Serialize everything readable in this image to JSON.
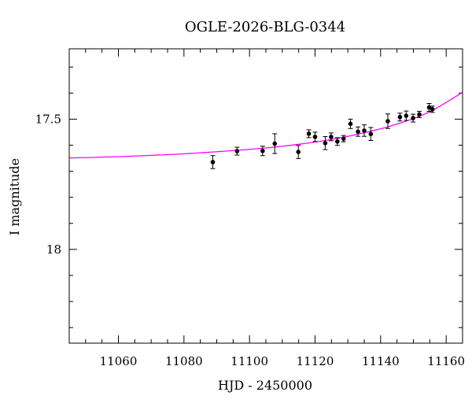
{
  "chart_data": {
    "type": "scatter",
    "title": "OGLE-2026-BLG-0344",
    "xlabel": "HJD - 2450000",
    "ylabel": "I magnitude",
    "xlim": [
      11045,
      11165
    ],
    "ylim": [
      18.36,
      17.23
    ],
    "y_inverted": true,
    "x_ticks": [
      11060,
      11080,
      11100,
      11120,
      11140,
      11160
    ],
    "x_minor_step": 5,
    "y_ticks": [
      17.5,
      18
    ],
    "y_minor_step": 0.1,
    "grid": false,
    "legend": "none",
    "colors": {
      "data_points": "#000000",
      "model_curve": "#ff00ff",
      "frame": "#000000"
    },
    "series": [
      {
        "kind": "points_with_errors",
        "points": [
          {
            "x": 11088.8,
            "y": 17.665,
            "err": 0.025
          },
          {
            "x": 11096.2,
            "y": 17.623,
            "err": 0.015
          },
          {
            "x": 11104.0,
            "y": 17.622,
            "err": 0.018
          },
          {
            "x": 11107.7,
            "y": 17.594,
            "err": 0.038
          },
          {
            "x": 11114.9,
            "y": 17.626,
            "err": 0.025
          },
          {
            "x": 11118.1,
            "y": 17.556,
            "err": 0.015
          },
          {
            "x": 11120.0,
            "y": 17.568,
            "err": 0.018
          },
          {
            "x": 11123.1,
            "y": 17.592,
            "err": 0.025
          },
          {
            "x": 11124.9,
            "y": 17.568,
            "err": 0.015
          },
          {
            "x": 11126.8,
            "y": 17.586,
            "err": 0.015
          },
          {
            "x": 11128.7,
            "y": 17.575,
            "err": 0.012
          },
          {
            "x": 11130.8,
            "y": 17.518,
            "err": 0.018
          },
          {
            "x": 11133.1,
            "y": 17.548,
            "err": 0.018
          },
          {
            "x": 11135.0,
            "y": 17.544,
            "err": 0.022
          },
          {
            "x": 11137.0,
            "y": 17.557,
            "err": 0.025
          },
          {
            "x": 11142.2,
            "y": 17.508,
            "err": 0.028
          },
          {
            "x": 11145.9,
            "y": 17.492,
            "err": 0.015
          },
          {
            "x": 11147.8,
            "y": 17.487,
            "err": 0.018
          },
          {
            "x": 11149.9,
            "y": 17.496,
            "err": 0.015
          },
          {
            "x": 11151.8,
            "y": 17.482,
            "err": 0.012
          },
          {
            "x": 11154.8,
            "y": 17.455,
            "err": 0.015
          },
          {
            "x": 11155.8,
            "y": 17.462,
            "err": 0.012
          }
        ]
      },
      {
        "kind": "model_curve",
        "points": [
          {
            "x": 11045,
            "y": 17.649
          },
          {
            "x": 11060,
            "y": 17.644
          },
          {
            "x": 11080,
            "y": 17.633
          },
          {
            "x": 11100,
            "y": 17.616
          },
          {
            "x": 11110,
            "y": 17.604
          },
          {
            "x": 11120,
            "y": 17.588
          },
          {
            "x": 11130,
            "y": 17.566
          },
          {
            "x": 11140,
            "y": 17.537
          },
          {
            "x": 11145,
            "y": 17.519
          },
          {
            "x": 11150,
            "y": 17.498
          },
          {
            "x": 11155,
            "y": 17.472
          },
          {
            "x": 11160,
            "y": 17.436
          },
          {
            "x": 11165,
            "y": 17.397
          }
        ]
      }
    ]
  }
}
